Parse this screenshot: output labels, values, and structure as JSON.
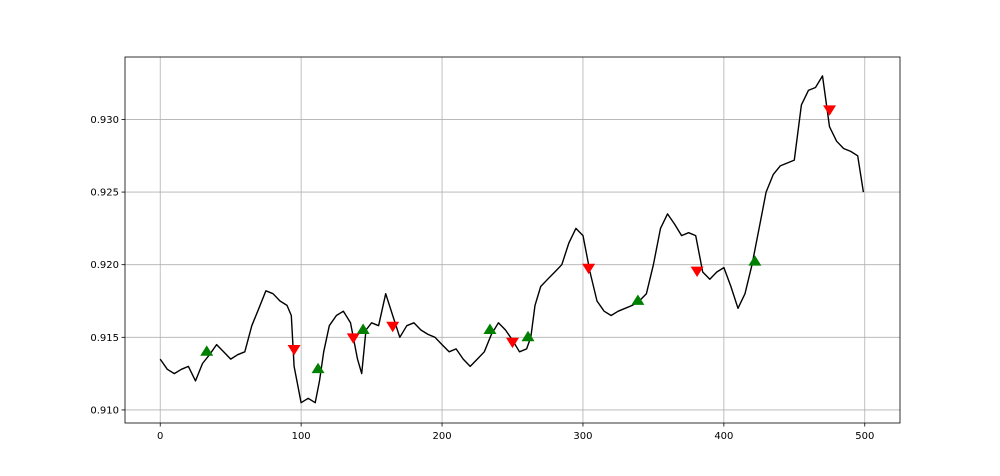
{
  "chart_data": {
    "type": "line",
    "title": "",
    "xlabel": "",
    "ylabel": "",
    "xlim": [
      -25,
      525
    ],
    "ylim": [
      0.9091,
      0.9343
    ],
    "x_ticks": [
      0,
      100,
      200,
      300,
      400,
      500
    ],
    "x_tick_labels": [
      "0",
      "100",
      "200",
      "300",
      "400",
      "500"
    ],
    "y_ticks": [
      0.91,
      0.915,
      0.92,
      0.925,
      0.93
    ],
    "y_tick_labels": [
      "0.910",
      "0.915",
      "0.920",
      "0.925",
      "0.930"
    ],
    "grid": true,
    "legend": "none",
    "series": [
      {
        "kind": "line",
        "color": "#000000",
        "x": [
          0,
          5,
          10,
          15,
          20,
          25,
          30,
          35,
          40,
          45,
          50,
          55,
          60,
          65,
          70,
          75,
          80,
          85,
          90,
          93,
          95,
          98,
          100,
          105,
          110,
          113,
          116,
          120,
          125,
          130,
          135,
          140,
          143,
          146,
          150,
          155,
          160,
          165,
          170,
          175,
          180,
          185,
          190,
          195,
          200,
          205,
          210,
          215,
          220,
          225,
          230,
          235,
          240,
          245,
          250,
          255,
          260,
          263,
          266,
          270,
          275,
          280,
          285,
          290,
          295,
          300,
          305,
          310,
          315,
          320,
          325,
          330,
          335,
          340,
          345,
          350,
          355,
          360,
          365,
          370,
          375,
          380,
          385,
          390,
          395,
          400,
          405,
          410,
          415,
          420,
          425,
          430,
          435,
          440,
          445,
          450,
          455,
          460,
          465,
          470,
          475,
          480,
          485,
          490,
          495,
          499
        ],
        "y": [
          0.9135,
          0.9128,
          0.9125,
          0.9128,
          0.913,
          0.912,
          0.9132,
          0.9138,
          0.9145,
          0.914,
          0.9135,
          0.9138,
          0.914,
          0.9158,
          0.917,
          0.9182,
          0.918,
          0.9175,
          0.9172,
          0.9165,
          0.913,
          0.9115,
          0.9105,
          0.9108,
          0.9105,
          0.912,
          0.914,
          0.9158,
          0.9165,
          0.9168,
          0.916,
          0.9135,
          0.9125,
          0.9155,
          0.916,
          0.9158,
          0.918,
          0.9165,
          0.915,
          0.9158,
          0.916,
          0.9155,
          0.9152,
          0.915,
          0.9145,
          0.914,
          0.9142,
          0.9135,
          0.913,
          0.9135,
          0.914,
          0.9152,
          0.916,
          0.9155,
          0.9148,
          0.914,
          0.9142,
          0.915,
          0.9172,
          0.9185,
          0.919,
          0.9195,
          0.92,
          0.9215,
          0.9225,
          0.922,
          0.9195,
          0.9175,
          0.9168,
          0.9165,
          0.9168,
          0.917,
          0.9172,
          0.9175,
          0.918,
          0.92,
          0.9225,
          0.9235,
          0.9228,
          0.922,
          0.9222,
          0.922,
          0.9195,
          0.919,
          0.9195,
          0.9198,
          0.9185,
          0.917,
          0.918,
          0.92,
          0.9225,
          0.925,
          0.9262,
          0.9268,
          0.927,
          0.9272,
          0.931,
          0.932,
          0.9322,
          0.933,
          0.9295,
          0.9285,
          0.928,
          0.9278,
          0.9275,
          0.925
        ]
      },
      {
        "kind": "markers",
        "marker": "triangle-up",
        "color": "#008000",
        "x": [
          33,
          112,
          144,
          234,
          261,
          339,
          422
        ],
        "y": [
          0.914,
          0.9128,
          0.9155,
          0.9155,
          0.915,
          0.9175,
          0.9202
        ]
      },
      {
        "kind": "markers",
        "marker": "triangle-down",
        "color": "#ff0000",
        "x": [
          95,
          137,
          165,
          250,
          304,
          381,
          475
        ],
        "y": [
          0.9142,
          0.915,
          0.9158,
          0.9147,
          0.9198,
          0.9196,
          0.9307
        ]
      }
    ]
  }
}
